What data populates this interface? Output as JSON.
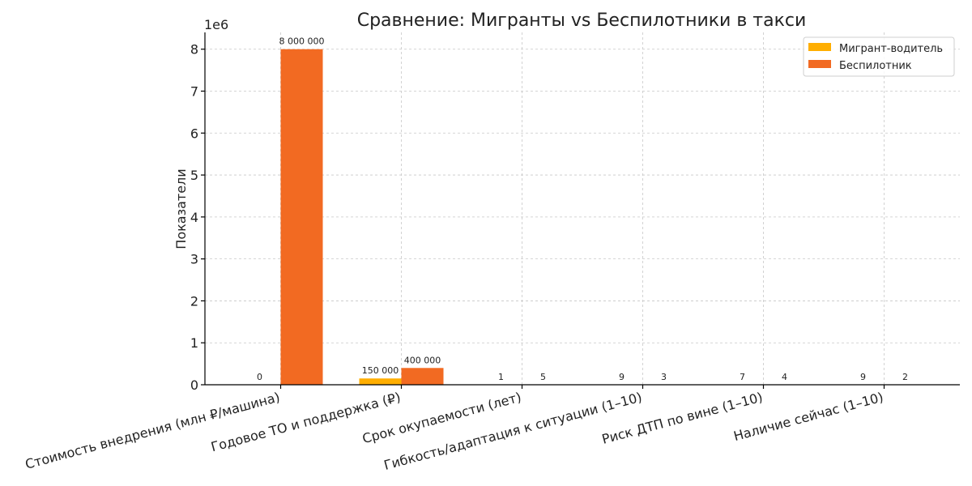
{
  "chart_data": {
    "type": "bar",
    "title": "Сравнение: Мигранты vs Беспилотники в такси",
    "xlabel": "",
    "ylabel": "Показатели",
    "y_scale_label": "1e6",
    "ylim": [
      0,
      8400000
    ],
    "yticks": [
      0,
      1000000,
      2000000,
      3000000,
      4000000,
      5000000,
      6000000,
      7000000,
      8000000
    ],
    "ytick_labels": [
      "0",
      "1",
      "2",
      "3",
      "4",
      "5",
      "6",
      "7",
      "8"
    ],
    "categories": [
      "Стоимость внедрения (млн ₽/машина)",
      "Годовое ТО и поддержка (₽)",
      "Срок окупаемости (лет)",
      "Гибкость/адаптация к ситуации (1–10)",
      "Риск ДТП по вине (1–10)",
      "Наличие сейчас (1–10)"
    ],
    "series": [
      {
        "name": "Мигрант-водитель",
        "color": "#ffae00",
        "values": [
          0,
          150000,
          1,
          9,
          7,
          9
        ],
        "labels": [
          "0",
          "150 000",
          "1",
          "9",
          "7",
          "9"
        ]
      },
      {
        "name": "Беспилотник",
        "color": "#f26a22",
        "values": [
          8000000,
          400000,
          5,
          3,
          4,
          2
        ],
        "labels": [
          "8 000 000",
          "400 000",
          "5",
          "3",
          "4",
          "2"
        ]
      }
    ],
    "grid": true,
    "legend": "top-right"
  }
}
